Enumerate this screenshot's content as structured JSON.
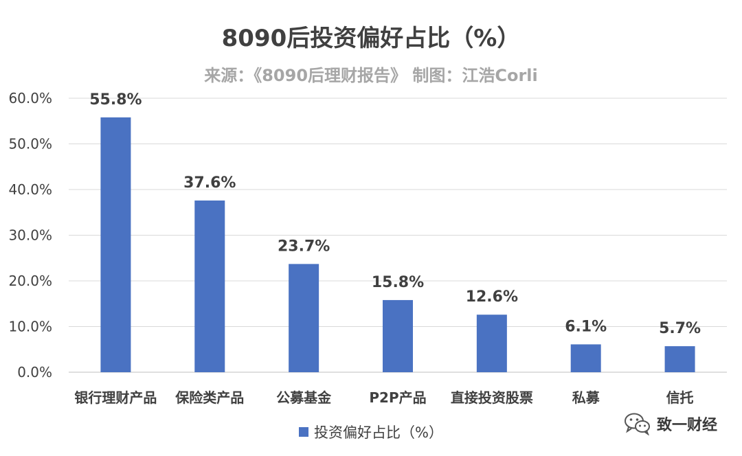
{
  "colors": {
    "bar": "#4a72c2",
    "grid": "#d9d9d9",
    "axis": "#bfbfbf"
  },
  "chart_data": {
    "type": "bar",
    "title": "8090后投资偏好占比（%）",
    "subtitle": "来源：《8090后理财报告》 制图：江浩Corli",
    "categories": [
      "银行理财产品",
      "保险类产品",
      "公募基金",
      "P2P产品",
      "直接投资股票",
      "私募",
      "信托"
    ],
    "series": [
      {
        "name": "投资偏好占比（%）",
        "values": [
          55.8,
          37.6,
          23.7,
          15.8,
          12.6,
          6.1,
          5.7
        ]
      }
    ],
    "data_labels": [
      "55.8%",
      "37.6%",
      "23.7%",
      "15.8%",
      "12.6%",
      "6.1%",
      "5.7%"
    ],
    "yticks": [
      0,
      10,
      20,
      30,
      40,
      50,
      60
    ],
    "ytick_labels": [
      "0.0%",
      "10.0%",
      "20.0%",
      "30.0%",
      "40.0%",
      "50.0%",
      "60.0%"
    ],
    "ylim": [
      0,
      60
    ],
    "grid": true,
    "legend_position": "bottom"
  },
  "watermark": {
    "text": "致一财经",
    "icon": "wechat-icon"
  }
}
